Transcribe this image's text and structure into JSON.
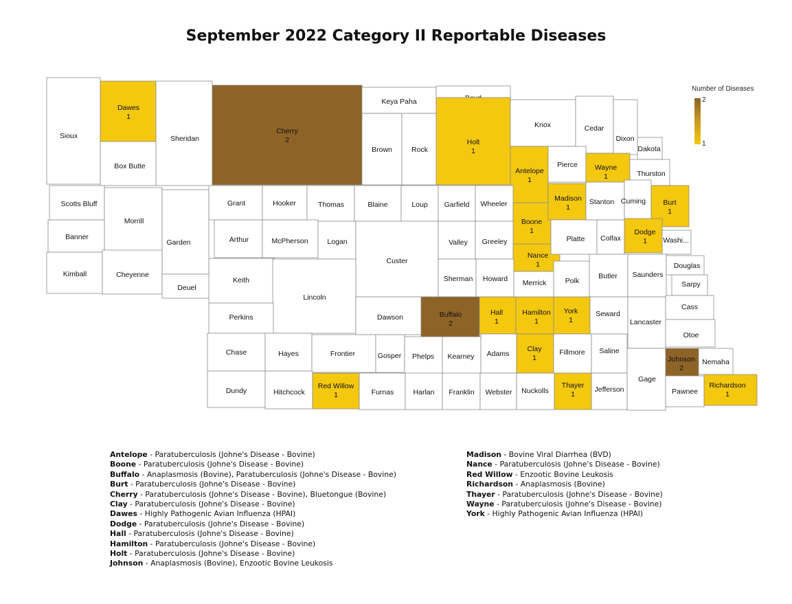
{
  "title": "September 2022 Category II Reportable Diseases",
  "legend": {
    "title": "Number of Diseases",
    "max_label": "2",
    "min_label": "1",
    "colors": {
      "two": "#8e6327",
      "one": "#f3c80f",
      "none": "#ffffff"
    }
  },
  "counties": [
    {
      "name": "Sioux"
    },
    {
      "name": "Dawes",
      "count": "1"
    },
    {
      "name": "Sheridan"
    },
    {
      "name": "Cherry",
      "count": "2"
    },
    {
      "name": "Keya Paha"
    },
    {
      "name": "Boyd"
    },
    {
      "name": "Box Butte"
    },
    {
      "name": "Brown"
    },
    {
      "name": "Rock"
    },
    {
      "name": "Holt",
      "count": "1"
    },
    {
      "name": "Knox"
    },
    {
      "name": "Cedar"
    },
    {
      "name": "Dixon"
    },
    {
      "name": "Dakota"
    },
    {
      "name": "Antelope",
      "count": "1"
    },
    {
      "name": "Pierce"
    },
    {
      "name": "Wayne",
      "count": "1"
    },
    {
      "name": "Thurston"
    },
    {
      "name": "Scotts Bluff"
    },
    {
      "name": "Morrill"
    },
    {
      "name": "Garden"
    },
    {
      "name": "Grant"
    },
    {
      "name": "Hooker"
    },
    {
      "name": "Thomas"
    },
    {
      "name": "Blaine"
    },
    {
      "name": "Loup"
    },
    {
      "name": "Garfield"
    },
    {
      "name": "Wheeler"
    },
    {
      "name": "Boone",
      "count": "1"
    },
    {
      "name": "Madison",
      "count": "1"
    },
    {
      "name": "Stanton"
    },
    {
      "name": "Cuming"
    },
    {
      "name": "Burt",
      "count": "1"
    },
    {
      "name": "Banner"
    },
    {
      "name": "Arthur"
    },
    {
      "name": "McPherson"
    },
    {
      "name": "Logan"
    },
    {
      "name": "Custer"
    },
    {
      "name": "Valley"
    },
    {
      "name": "Greeley"
    },
    {
      "name": "Nance",
      "count": "1"
    },
    {
      "name": "Platte"
    },
    {
      "name": "Colfax"
    },
    {
      "name": "Dodge",
      "count": "1"
    },
    {
      "name": "Washi..."
    },
    {
      "name": "Kimball"
    },
    {
      "name": "Cheyenne"
    },
    {
      "name": "Deuel"
    },
    {
      "name": "Keith"
    },
    {
      "name": "Lincoln"
    },
    {
      "name": "Sherman"
    },
    {
      "name": "Howard"
    },
    {
      "name": "Merrick"
    },
    {
      "name": "Polk"
    },
    {
      "name": "Butler"
    },
    {
      "name": "Saunders"
    },
    {
      "name": "Douglas"
    },
    {
      "name": "Sarpy"
    },
    {
      "name": "Perkins"
    },
    {
      "name": "Dawson"
    },
    {
      "name": "Buffalo",
      "count": "2"
    },
    {
      "name": "Hall",
      "count": "1"
    },
    {
      "name": "Hamilton",
      "count": "1"
    },
    {
      "name": "York",
      "count": "1"
    },
    {
      "name": "Seward"
    },
    {
      "name": "Lancaster"
    },
    {
      "name": "Cass"
    },
    {
      "name": "Otoe"
    },
    {
      "name": "Chase"
    },
    {
      "name": "Hayes"
    },
    {
      "name": "Frontier"
    },
    {
      "name": "Gosper"
    },
    {
      "name": "Phelps"
    },
    {
      "name": "Kearney"
    },
    {
      "name": "Adams"
    },
    {
      "name": "Clay",
      "count": "1"
    },
    {
      "name": "Fillmore"
    },
    {
      "name": "Saline"
    },
    {
      "name": "Gage"
    },
    {
      "name": "Johnson",
      "count": "2"
    },
    {
      "name": "Nemaha"
    },
    {
      "name": "Dundy"
    },
    {
      "name": "Hitchcock"
    },
    {
      "name": "Red Willow",
      "count": "1"
    },
    {
      "name": "Furnas"
    },
    {
      "name": "Harlan"
    },
    {
      "name": "Franklin"
    },
    {
      "name": "Webster"
    },
    {
      "name": "Nuckolls"
    },
    {
      "name": "Thayer",
      "count": "1"
    },
    {
      "name": "Jefferson"
    },
    {
      "name": "Pawnee"
    },
    {
      "name": "Richardson",
      "count": "1"
    }
  ],
  "diseases_left": [
    {
      "county": "Antelope",
      "text": " - Paratuberculosis (Johne's Disease - Bovine)"
    },
    {
      "county": "Boone",
      "text": " - Paratuberculosis (Johne's Disease - Bovine)"
    },
    {
      "county": "Buffalo",
      "text": " - Anaplasmosis (Bovine), Paratuberculosis (Johne's Disease - Bovine)"
    },
    {
      "county": "Burt",
      "text": " - Paratuberculosis (Johne's Disease - Bovine)"
    },
    {
      "county": "Cherry",
      "text": " - Paratuberculosis (Johne's Disease - Bovine), Bluetongue (Bovine)"
    },
    {
      "county": "Clay",
      "text": " - Paratuberculosis (Johne's Disease - Bovine)"
    },
    {
      "county": "Dawes",
      "text": " - Highly Pathogenic Avian Influenza (HPAI)"
    },
    {
      "county": "Dodge",
      "text": " - Paratuberculosis (Johne's Disease - Bovine)"
    },
    {
      "county": "Hall",
      "text": " - Paratuberculosis (Johne's Disease - Bovine)"
    },
    {
      "county": "Hamilton",
      "text": " - Paratuberculosis (Johne's Disease - Bovine)"
    },
    {
      "county": "Holt",
      "text": " - Paratuberculosis (Johne's Disease - Bovine)"
    },
    {
      "county": "Johnson",
      "text": " - Anaplasmosis (Bovine), Enzootic Bovine Leukosis"
    }
  ],
  "diseases_right": [
    {
      "county": "Madison",
      "text": " - Bovine Viral Diarrhea (BVD)"
    },
    {
      "county": "Nance",
      "text": " - Paratuberculosis (Johne's Disease - Bovine)"
    },
    {
      "county": "Red Willow",
      "text": " - Enzootic Bovine Leukosis"
    },
    {
      "county": "Richardson",
      "text": " - Anaplasmosis (Bovine)"
    },
    {
      "county": "Thayer",
      "text": " - Paratuberculosis (Johne's Disease - Bovine)"
    },
    {
      "county": "Wayne",
      "text": " - Paratuberculosis (Johne's Disease - Bovine)"
    },
    {
      "county": "York",
      "text": " - Highly Pathogenic Avian Influenza (HPAI)"
    }
  ]
}
